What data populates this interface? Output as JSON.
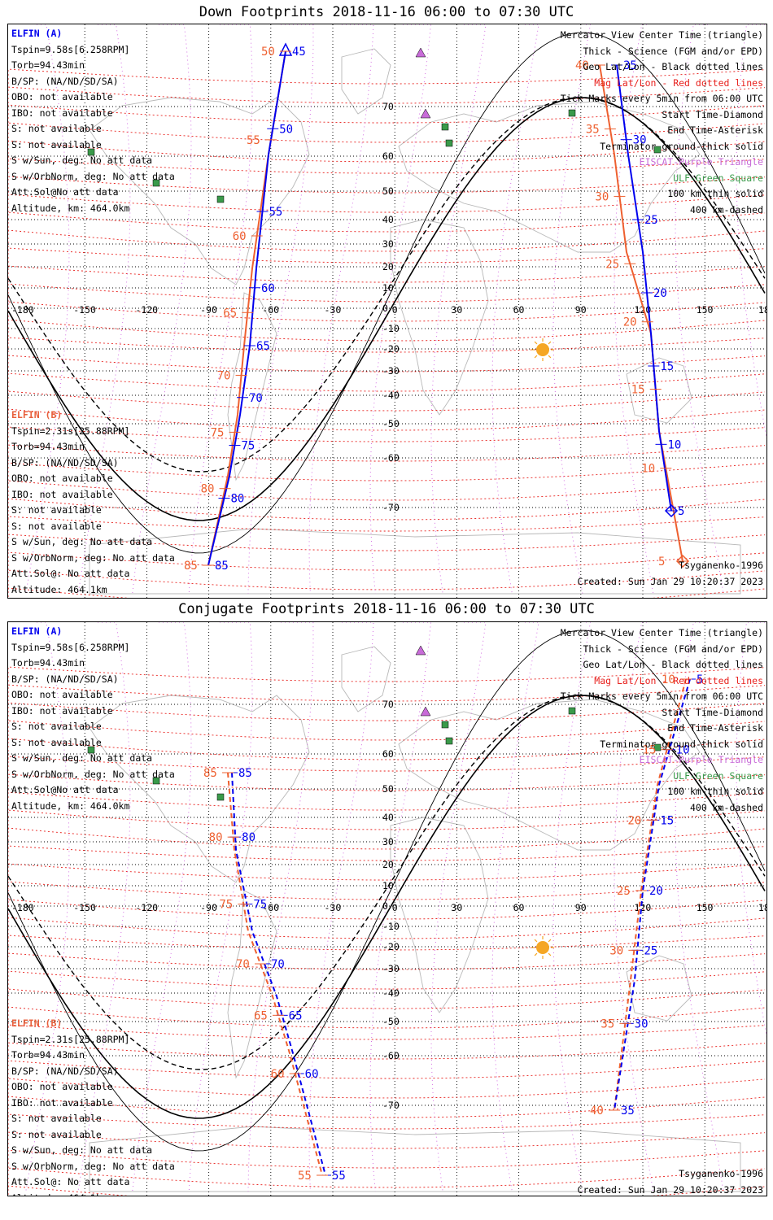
{
  "panels": [
    {
      "id": "down",
      "title": "Down Footprints 2018-11-16 06:00 to 07:30 UTC",
      "elfin_a": {
        "header": "ELFIN (A)",
        "lines": [
          "Tspin=9.58s[6.258RPM]",
          "Torb=94.43min",
          "B/SP: (NA/ND/SD/SA)",
          "OBO: not available",
          "IBO: not available",
          "S: not available",
          "S: not available",
          "S w/Sun, deg: No att data",
          "S w/OrbNorm, deg: No att data",
          "Att.Sol@No att data",
          "Altitude, km: 464.0km"
        ]
      },
      "elfin_b": {
        "header": "ELFIN (B)",
        "lines": [
          "Tspin=2.31s[25.88RPM]",
          "Torb=94.43min",
          "B/SP: (NA/ND/SD/SA)",
          "OBO: not available",
          "IBO: not available",
          "S: not available",
          "S: not available",
          "S w/Sun, deg: No att data",
          "S w/OrbNorm, deg: No att data",
          "Att.Sol@: No att data",
          "Altitude: 464.1km"
        ]
      },
      "legend": [
        {
          "text": "Mercator View Center Time (triangle)",
          "color": "black"
        },
        {
          "text": "Thick - Science (FGM and/or EPD)",
          "color": "black"
        },
        {
          "text": "Geo Lat/Lon - Black dotted lines",
          "color": "black"
        },
        {
          "text": "Mag Lat/Lon - Red dotted lines",
          "color": "red"
        },
        {
          "text": "Tick Marks every 5min from 06:00 UTC",
          "color": "black"
        },
        {
          "text": "Start Time-Diamond",
          "color": "black"
        },
        {
          "text": "End Time-Asterisk",
          "color": "black"
        },
        {
          "text": "Terminator ground-thick solid",
          "color": "black"
        },
        {
          "text": "EISCAT-Purple Triangle",
          "color": "purple"
        },
        {
          "text": "ULF-Green Square",
          "color": "green"
        },
        {
          "text": "100 km-thin solid",
          "color": "black"
        },
        {
          "text": "400 km-dashed",
          "color": "black"
        }
      ],
      "footer": {
        "model": "Tsyganenko-1996",
        "created": "Created: Sun Jan 29 10:20:37 2023"
      },
      "track_labels": {
        "west_blue": [
          "45",
          "50",
          "55",
          "60",
          "65",
          "70",
          "75",
          "80",
          "85"
        ],
        "west_red": [
          "50",
          "55",
          "60",
          "65",
          "70",
          "75",
          "80",
          "85"
        ],
        "east_blue": [
          "35",
          "30",
          "25",
          "20",
          "15",
          "10",
          "5"
        ],
        "east_red": [
          "40",
          "35",
          "30",
          "25",
          "20",
          "15",
          "10",
          "5"
        ]
      }
    },
    {
      "id": "conjugate",
      "title": "Conjugate Footprints 2018-11-16 06:00 to 07:30 UTC",
      "elfin_a": {
        "header": "ELFIN (A)",
        "lines": [
          "Tspin=9.58s[6.258RPM]",
          "Torb=94.43min",
          "B/SP: (NA/ND/SD/SA)",
          "OBO: not available",
          "IBO: not available",
          "S: not available",
          "S: not available",
          "S w/Sun, deg: No att data",
          "S w/OrbNorm, deg: No att data",
          "Att.Sol@No att data",
          "Altitude, km: 464.0km"
        ]
      },
      "elfin_b": {
        "header": "ELFIN (B)",
        "lines": [
          "Tspin=2.31s[25.88RPM]",
          "Torb=94.43min",
          "B/SP: (NA/ND/SD/SA)",
          "OBO: not available",
          "IBO: not available",
          "S: not available",
          "S: not available",
          "S w/Sun, deg: No att data",
          "S w/OrbNorm, deg: No att data",
          "Att.Sol@: No att data",
          "Altitude: 464.1km"
        ]
      },
      "legend": [
        {
          "text": "Mercator View Center Time (triangle)",
          "color": "black"
        },
        {
          "text": "Thick - Science (FGM and/or EPD)",
          "color": "black"
        },
        {
          "text": "Geo Lat/Lon - Black dotted lines",
          "color": "black"
        },
        {
          "text": "Mag Lat/Lon - Red dotted lines",
          "color": "red"
        },
        {
          "text": "Tick Marks every 5min from 06:00 UTC",
          "color": "black"
        },
        {
          "text": "Start Time-Diamond",
          "color": "black"
        },
        {
          "text": "End Time-Asterisk",
          "color": "black"
        },
        {
          "text": "Terminator ground-thick solid",
          "color": "black"
        },
        {
          "text": "EISCAT-Purple Triangle",
          "color": "purple"
        },
        {
          "text": "ULF-Green Square",
          "color": "green"
        },
        {
          "text": "100 km-thin solid",
          "color": "black"
        },
        {
          "text": "400 km-dashed",
          "color": "black"
        }
      ],
      "footer": {
        "model": "Tsyganenko-1996",
        "created": "Created: Sun Jan 29 10:20:37 2023"
      },
      "track_labels": {
        "west_blue": [
          "85",
          "80",
          "75",
          "70",
          "65",
          "60",
          "55"
        ],
        "west_red": [
          "85",
          "80",
          "75",
          "70",
          "65",
          "60",
          "55"
        ],
        "east_blue": [
          "5",
          "10",
          "15",
          "20",
          "25",
          "30",
          "35"
        ],
        "east_red": [
          "10",
          "15",
          "20",
          "25",
          "30",
          "35",
          "40"
        ]
      }
    }
  ],
  "axes": {
    "lon_ticks": [
      "-180",
      "-150",
      "-120",
      "-90",
      "-60",
      "-30",
      "0",
      "30",
      "60",
      "90",
      "120",
      "150",
      "180"
    ],
    "lat_ticks": [
      "70",
      "60",
      "50",
      "40",
      "30",
      "20",
      "10",
      "0",
      "-10",
      "-20",
      "-30",
      "-40",
      "-50",
      "-60",
      "-70"
    ]
  },
  "colors": {
    "elfin_a": "#0000ee",
    "elfin_b": "#ee6030",
    "mag_grid": "#e8201c",
    "lon_mag": "#d060e0",
    "sun": "#f5a623",
    "station": "#3a9a4a",
    "eiscat": "#c86bd8"
  }
}
